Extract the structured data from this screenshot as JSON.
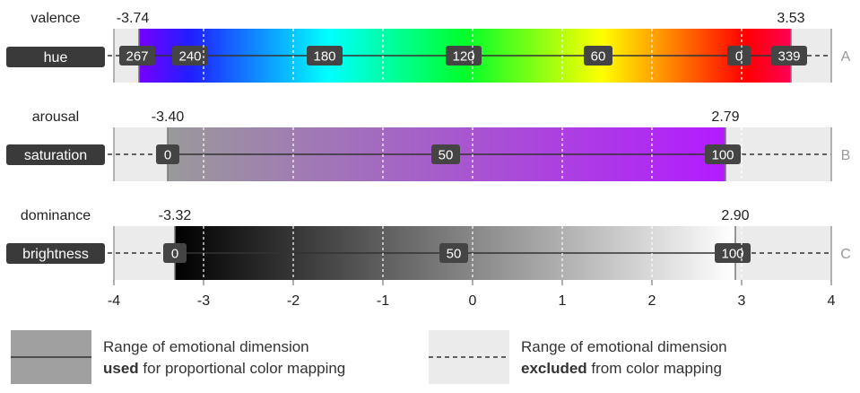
{
  "chart_data": {
    "type": "diagram",
    "x_axis": {
      "min": -4,
      "max": 4,
      "ticks": [
        -4,
        -3,
        -2,
        -1,
        0,
        1,
        2,
        3,
        4
      ]
    },
    "rows": [
      {
        "dimension": "valence",
        "color_channel": "hue",
        "tag": "A",
        "range": [
          -3.74,
          3.53
        ],
        "range_labels": [
          "-3.74",
          "3.53"
        ],
        "gradient": "hue",
        "markers": [
          {
            "label": "267",
            "x": -3.74
          },
          {
            "label": "240",
            "x": -3.15
          },
          {
            "label": "180",
            "x": -1.65
          },
          {
            "label": "120",
            "x": -0.1
          },
          {
            "label": "60",
            "x": 1.4
          },
          {
            "label": "0",
            "x": 2.97
          },
          {
            "label": "339",
            "x": 3.53
          }
        ]
      },
      {
        "dimension": "arousal",
        "color_channel": "saturation",
        "tag": "B",
        "range": [
          -3.4,
          2.79
        ],
        "range_labels": [
          "-3.40",
          "2.79"
        ],
        "gradient": "saturation",
        "markers": [
          {
            "label": "0",
            "x": -3.4
          },
          {
            "label": "50",
            "x": -0.3
          },
          {
            "label": "100",
            "x": 2.79
          }
        ]
      },
      {
        "dimension": "dominance",
        "color_channel": "brightness",
        "tag": "C",
        "range": [
          -3.32,
          2.9
        ],
        "range_labels": [
          "-3.32",
          "2.90"
        ],
        "gradient": "brightness",
        "markers": [
          {
            "label": "0",
            "x": -3.32
          },
          {
            "label": "50",
            "x": -0.21
          },
          {
            "label": "100",
            "x": 2.9
          }
        ]
      }
    ]
  },
  "legend": {
    "used_line1": "Range of emotional dimension",
    "used_bold": "used",
    "used_rest": " for proportional color mapping",
    "excluded_line1": "Range of emotional dimension",
    "excluded_bold": "excluded",
    "excluded_rest": " from color mapping"
  },
  "colors": {
    "excluded_bg": "#ebebeb",
    "label_box": "#3a3a3a",
    "pill": "#444444",
    "legend_used": "#a0a0a0",
    "legend_excluded": "#ebebeb"
  }
}
